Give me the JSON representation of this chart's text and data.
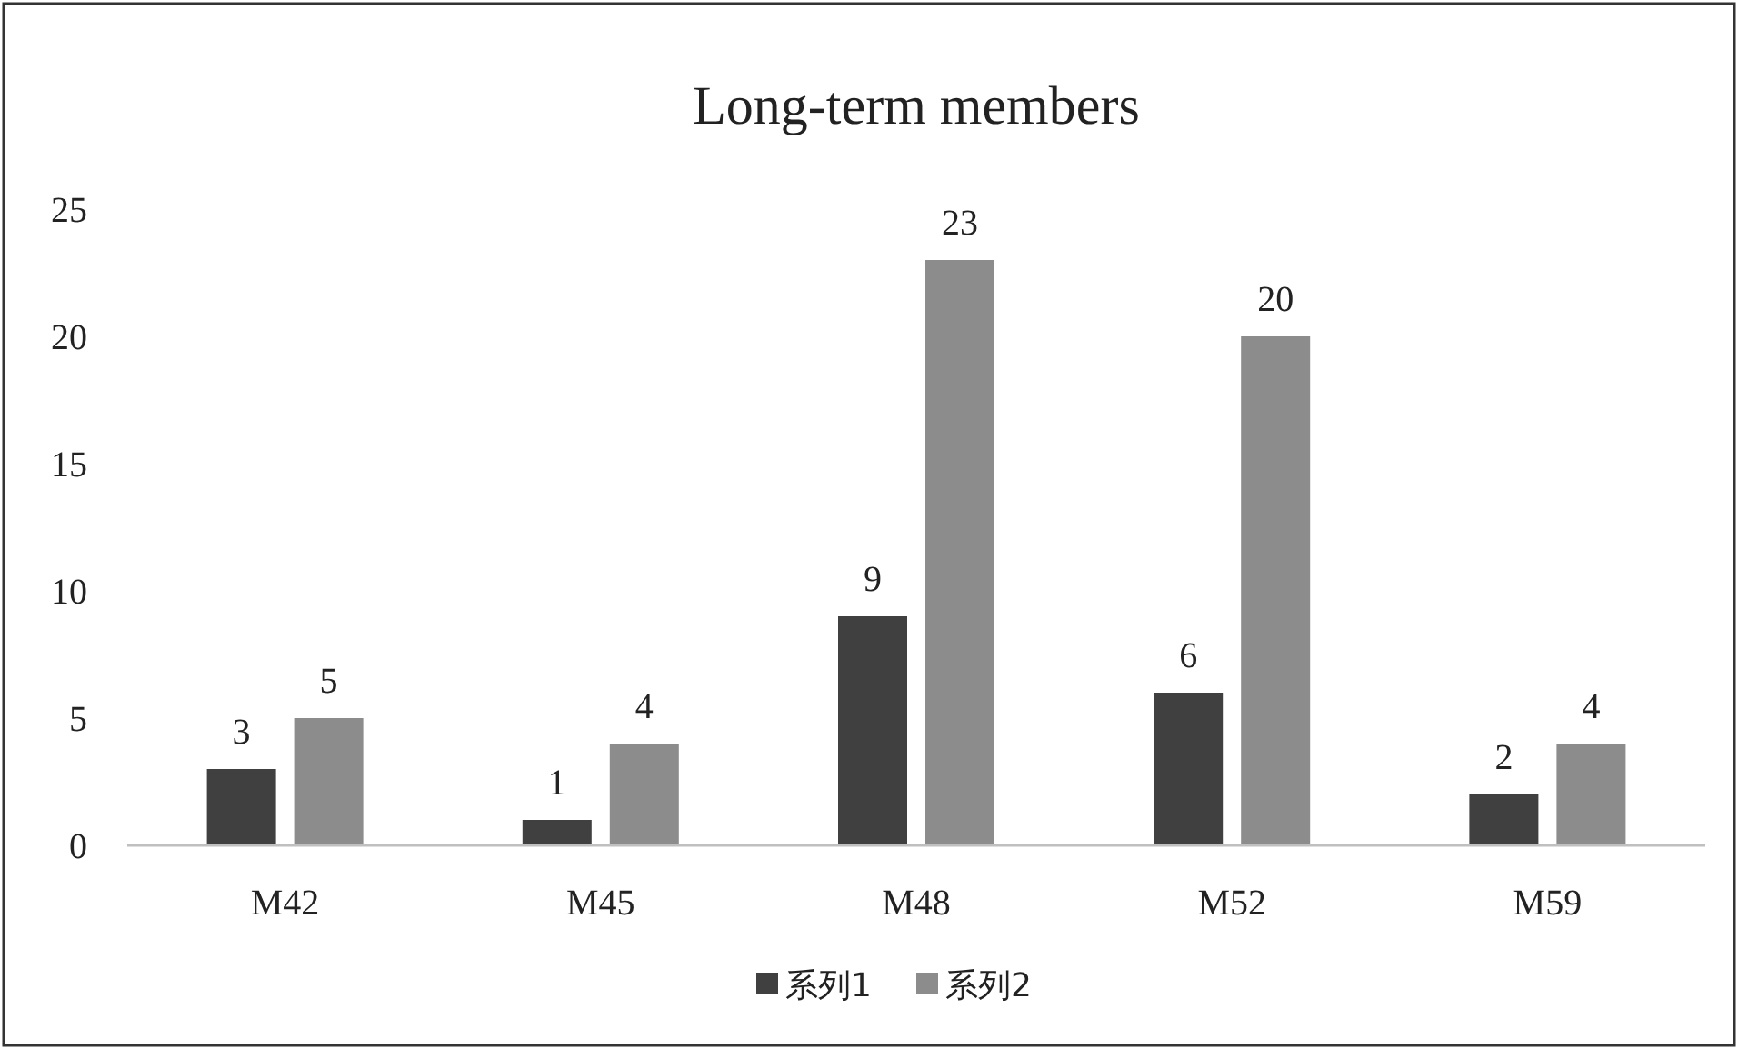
{
  "chart_data": {
    "type": "bar",
    "title": "Long-term members",
    "categories": [
      "M42",
      "M45",
      "M48",
      "M52",
      "M59"
    ],
    "series": [
      {
        "name": "系列1",
        "color": "#404040",
        "values": [
          3,
          1,
          9,
          6,
          2
        ]
      },
      {
        "name": "系列2",
        "color": "#8c8c8c",
        "values": [
          5,
          4,
          23,
          20,
          4
        ]
      }
    ],
    "ylim": [
      0,
      25
    ],
    "yticks": [
      0,
      5,
      10,
      15,
      20,
      25
    ],
    "data_labels": true,
    "legend": "bottom",
    "grid": false
  }
}
